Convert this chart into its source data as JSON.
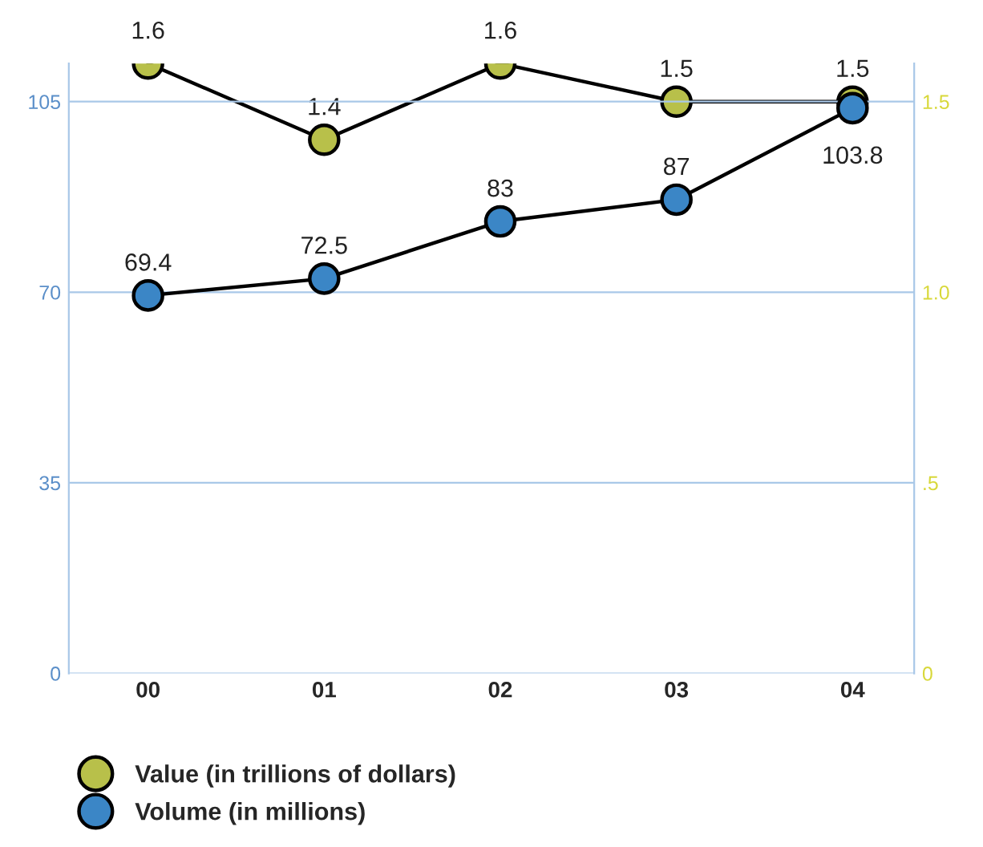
{
  "chart_data": {
    "type": "line",
    "categories": [
      "00",
      "01",
      "02",
      "03",
      "04"
    ],
    "series": [
      {
        "name": "Value (in trillions of dollars)",
        "color": "#b8c04a",
        "values": [
          1.6,
          1.4,
          1.6,
          1.5,
          1.5
        ],
        "axis": "y2"
      },
      {
        "name": "Volume (in millions)",
        "color": "#3b86c6",
        "values": [
          69.4,
          72.5,
          83,
          87,
          103.8
        ]
      }
    ],
    "ylim": [
      0,
      112
    ],
    "yticks": [
      0,
      35,
      70,
      105
    ],
    "y2lim": [
      0,
      1.6
    ],
    "y2ticks": [
      {
        "value": 0,
        "label": "0"
      },
      {
        "value": 0.5,
        "label": ".5"
      },
      {
        "value": 1.0,
        "label": "1.0"
      },
      {
        "value": 1.5,
        "label": "1.5"
      }
    ],
    "grid": "y",
    "legend": "bottom",
    "marker": "circle",
    "line_style": "solid",
    "data_labels": true
  }
}
